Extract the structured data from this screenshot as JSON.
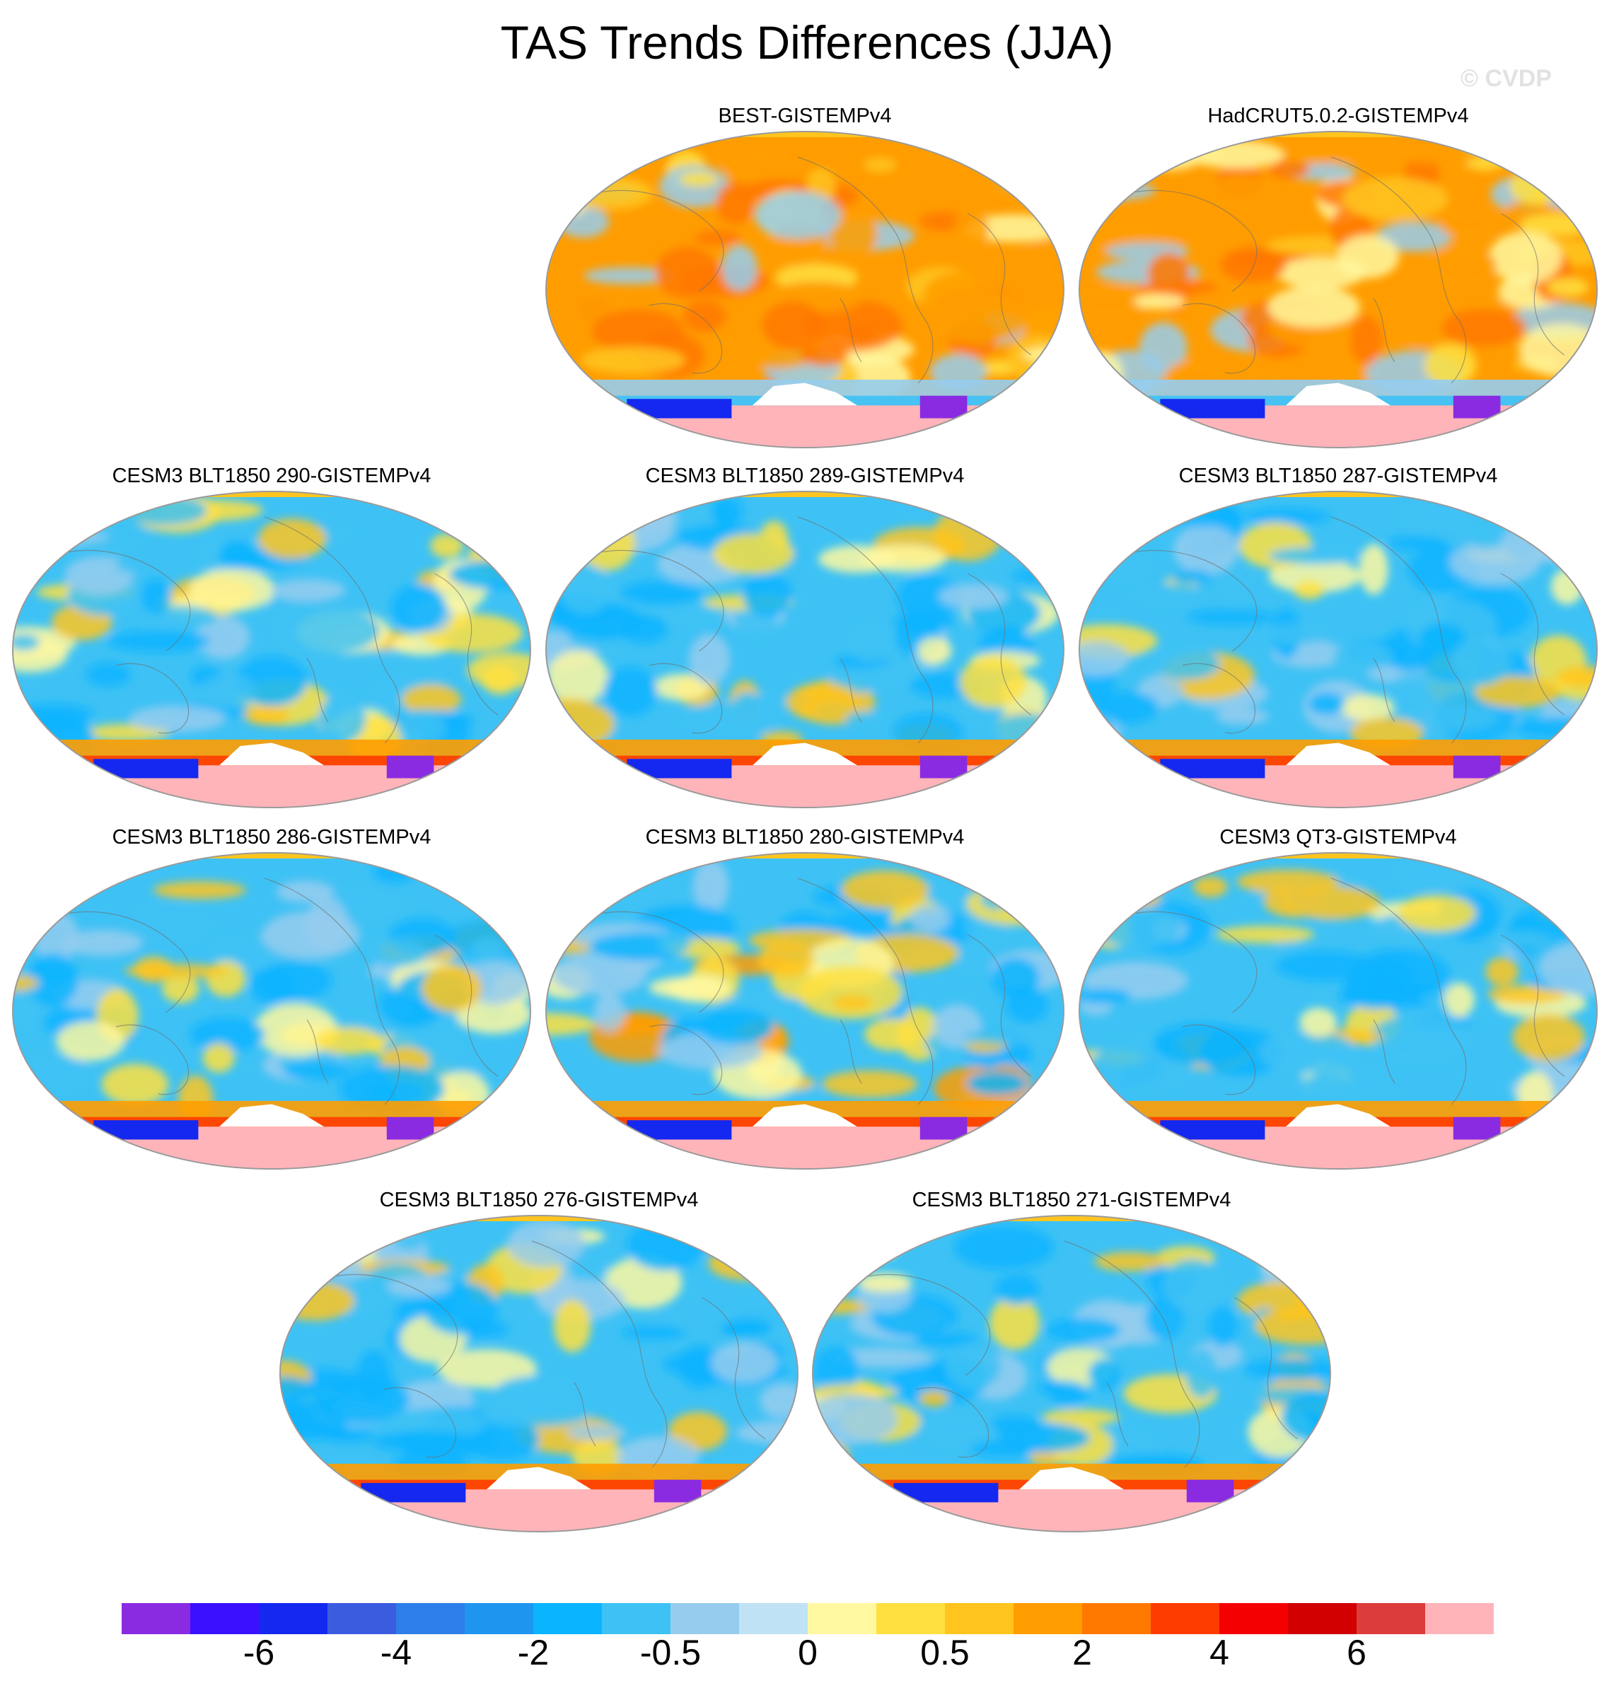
{
  "figure": {
    "title": "TAS Trends Differences (JJA)",
    "watermark": "© CVDP"
  },
  "chart_data": {
    "type": "heatmap",
    "title": "TAS Trends Differences (JJA)",
    "projection": "Robinson (global)",
    "panels": [
      {
        "label": "BEST-GISTEMPv4",
        "regime": "warm"
      },
      {
        "label": "HadCRUT5.0.2-GISTEMPv4",
        "regime": "warm"
      },
      {
        "label": "CESM3 BLT1850 290-GISTEMPv4",
        "regime": "cool"
      },
      {
        "label": "CESM3 BLT1850 289-GISTEMPv4",
        "regime": "cool"
      },
      {
        "label": "CESM3 BLT1850 287-GISTEMPv4",
        "regime": "cool"
      },
      {
        "label": "CESM3 BLT1850 286-GISTEMPv4",
        "regime": "cool"
      },
      {
        "label": "CESM3 BLT1850 280-GISTEMPv4",
        "regime": "mixed"
      },
      {
        "label": "CESM3 QT3-GISTEMPv4",
        "regime": "cool"
      },
      {
        "label": "CESM3 BLT1850 276-GISTEMPv4",
        "regime": "cool"
      },
      {
        "label": "CESM3 BLT1850 271-GISTEMPv4",
        "regime": "cool"
      }
    ],
    "colorbar": {
      "colors": [
        "#8a2be2",
        "#3a10ff",
        "#1428f0",
        "#3c5ce0",
        "#2d7ee8",
        "#1e96f0",
        "#0ab4ff",
        "#3ec2f5",
        "#96cdee",
        "#bfe3f5",
        "#fff8a0",
        "#ffe040",
        "#ffc51e",
        "#ff9d00",
        "#ff7800",
        "#ff3c00",
        "#f50000",
        "#d20000",
        "#dc3c3c",
        "#ffb4b9"
      ],
      "tick_labels": [
        "-6",
        "-4",
        "-2",
        "-0.5",
        "0",
        "0.5",
        "2",
        "4",
        "6"
      ]
    }
  }
}
